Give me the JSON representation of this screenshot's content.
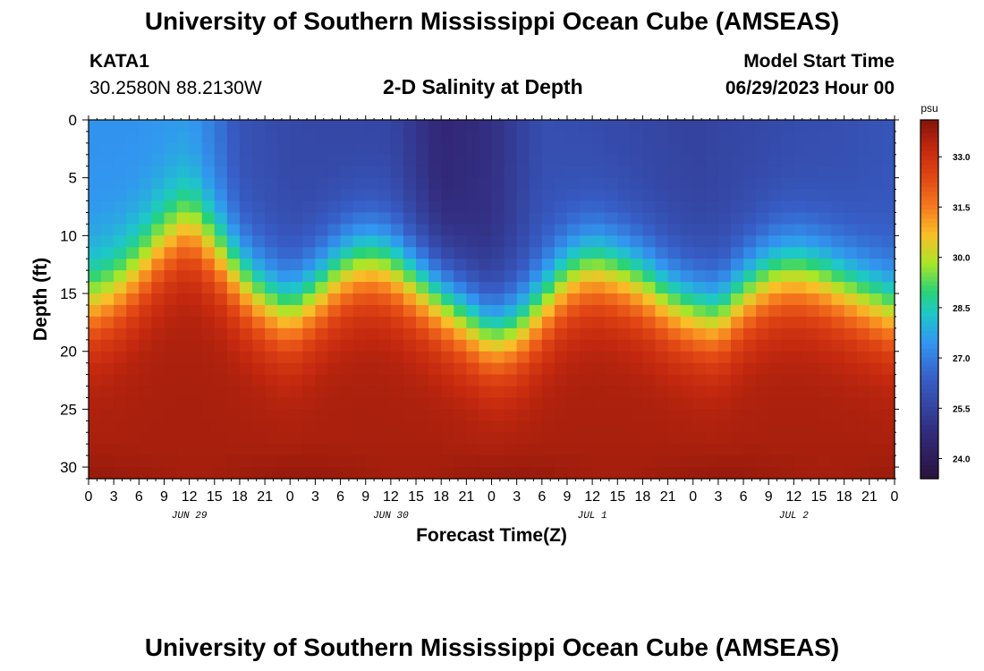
{
  "header": {
    "title": "University of Southern Mississippi Ocean Cube (AMSEAS)",
    "station_id": "KATA1",
    "station_coords": "30.2580N  88.2130W",
    "plot_title": "2-D Salinity at Depth",
    "model_start_label": "Model Start Time",
    "model_start_value": "06/29/2023 Hour 00"
  },
  "footer": {
    "title": "University of Southern Mississippi Ocean Cube (AMSEAS)"
  },
  "chart_data": {
    "type": "heatmap",
    "title": "2-D Salinity at Depth",
    "xlabel": "Forecast Time(Z)",
    "ylabel": "Depth (ft)",
    "x_range_hours": [
      0,
      96
    ],
    "x_tick_labels": [
      "0",
      "3",
      "6",
      "9",
      "12",
      "15",
      "18",
      "21",
      "0",
      "3",
      "6",
      "9",
      "12",
      "15",
      "18",
      "21",
      "0",
      "3",
      "6",
      "9",
      "12",
      "15",
      "18",
      "21",
      "0",
      "3",
      "6",
      "9",
      "12",
      "15",
      "18",
      "21",
      "0"
    ],
    "x_tick_hours": [
      0,
      3,
      6,
      9,
      12,
      15,
      18,
      21,
      24,
      27,
      30,
      33,
      36,
      39,
      42,
      45,
      48,
      51,
      54,
      57,
      60,
      63,
      66,
      69,
      72,
      75,
      78,
      81,
      84,
      87,
      90,
      93,
      96
    ],
    "date_labels": [
      {
        "label": "JUN 29",
        "hour": 12
      },
      {
        "label": "JUN 30",
        "hour": 36
      },
      {
        "label": "JUL 1",
        "hour": 60
      },
      {
        "label": "JUL 2",
        "hour": 84
      }
    ],
    "y_range_ft": [
      0,
      31
    ],
    "y_ticks": [
      0,
      5,
      10,
      15,
      20,
      25,
      30
    ],
    "y_tick_labels": [
      "0",
      "5",
      "10",
      "15",
      "20",
      "25",
      "30"
    ],
    "colorbar": {
      "unit": "psu",
      "range": [
        23.4,
        34.1
      ],
      "tick_values": [
        33.0,
        31.5,
        30.0,
        28.5,
        27.0,
        25.5,
        24.0
      ],
      "tick_labels": [
        "33.0",
        "31.5",
        "30.0",
        "28.5",
        "27.0",
        "25.5",
        "24.0"
      ]
    },
    "halocline_depth_ft": {
      "hours": [
        0,
        3,
        6,
        9,
        12,
        15,
        18,
        21,
        24,
        27,
        30,
        33,
        36,
        39,
        42,
        45,
        48,
        51,
        54,
        57,
        60,
        63,
        66,
        69,
        72,
        75,
        78,
        81,
        84,
        87,
        90,
        93,
        96
      ],
      "depth": [
        16.0,
        15.0,
        13.0,
        10.5,
        9.0,
        11.0,
        13.5,
        15.5,
        16.5,
        15.0,
        13.0,
        12.0,
        12.5,
        14.0,
        15.5,
        17.0,
        18.5,
        18.0,
        16.0,
        13.5,
        12.5,
        13.0,
        14.0,
        15.5,
        16.5,
        17.0,
        15.0,
        13.5,
        13.0,
        13.5,
        14.5,
        15.5,
        16.5
      ]
    },
    "surface_salinity_psu": {
      "hours": [
        0,
        6,
        12,
        15,
        18,
        24,
        36,
        42,
        48,
        54,
        60,
        72,
        84,
        90,
        96
      ],
      "values": [
        27.4,
        27.4,
        27.5,
        26.9,
        26.0,
        25.7,
        25.6,
        24.6,
        24.9,
        25.9,
        25.8,
        25.5,
        25.8,
        25.9,
        26.1
      ]
    },
    "deep_salinity_psu": 33.6
  }
}
